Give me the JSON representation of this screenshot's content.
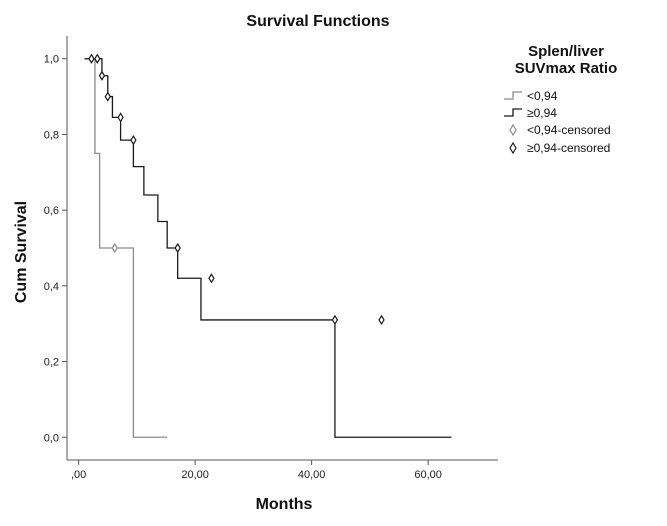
{
  "chart_data": {
    "type": "line",
    "subtype": "kaplan-meier",
    "title": "Survival Functions",
    "xlabel": "Months",
    "ylabel": "Cum Survival",
    "xlim": [
      -2,
      72
    ],
    "ylim": [
      -0.06,
      1.06
    ],
    "x_ticks": [
      0,
      20,
      40,
      60
    ],
    "x_tick_labels": [
      ",00",
      "20,00",
      "40,00",
      "60,00"
    ],
    "y_ticks": [
      0,
      0.2,
      0.4,
      0.6,
      0.8,
      1.0
    ],
    "y_tick_labels": [
      "0,0",
      "0,2",
      "0,4",
      "0,6",
      "0,8",
      "1,0"
    ],
    "grid": false,
    "legend_title": "Splen/liver SUVmax Ratio",
    "legend_title_lines": [
      "Splen/liver",
      "SUVmax Ratio"
    ],
    "legend_position": "top-right",
    "series": [
      {
        "name": "<0,94",
        "color": "#8c8c8c",
        "steps": [
          [
            1,
            1.0
          ],
          [
            2.8,
            0.75
          ],
          [
            3.6,
            0.5
          ],
          [
            9.4,
            0.0
          ],
          [
            15.2,
            0.0
          ]
        ],
        "censored": [
          [
            6.2,
            0.5
          ]
        ]
      },
      {
        "name": "≥0,94",
        "color": "#1a1a1a",
        "steps": [
          [
            1,
            1.0
          ],
          [
            3.0,
            1.0
          ],
          [
            4.0,
            0.955
          ],
          [
            5.0,
            0.9
          ],
          [
            5.8,
            0.845
          ],
          [
            7.2,
            0.785
          ],
          [
            9.4,
            0.715
          ],
          [
            11.2,
            0.64
          ],
          [
            13.6,
            0.57
          ],
          [
            15.2,
            0.5
          ],
          [
            17.0,
            0.42
          ],
          [
            21.0,
            0.31
          ],
          [
            44.0,
            0.0
          ],
          [
            64.0,
            0.0
          ]
        ],
        "censored": [
          [
            2.2,
            1.0
          ],
          [
            3.2,
            1.0
          ],
          [
            4.0,
            0.955
          ],
          [
            5.0,
            0.9
          ],
          [
            7.2,
            0.845
          ],
          [
            9.4,
            0.785
          ],
          [
            17.0,
            0.5
          ],
          [
            22.8,
            0.42
          ],
          [
            44.0,
            0.31
          ],
          [
            52.0,
            0.31
          ]
        ]
      }
    ],
    "legend_entries": [
      {
        "label": "<0,94",
        "kind": "line",
        "series": 0
      },
      {
        "label": "≥0,94",
        "kind": "line",
        "series": 1
      },
      {
        "label": "<0,94-censored",
        "kind": "marker",
        "series": 0
      },
      {
        "label": "≥0,94-censored",
        "kind": "marker",
        "series": 1
      }
    ]
  }
}
